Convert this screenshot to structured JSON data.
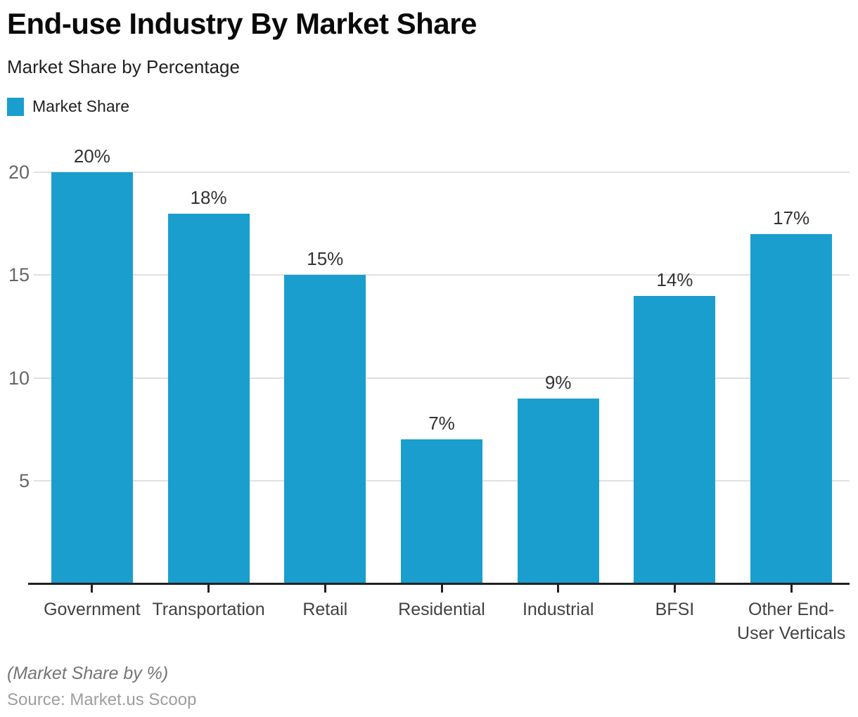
{
  "colors": {
    "title": "#0a0a0a",
    "subtitle": "#212121",
    "bar": "#1A9ECD",
    "grid": "#e0e0e0",
    "tick": "#666666",
    "value": "#333333",
    "axis": "#212121",
    "cat": "#424242",
    "footnote": "#757575",
    "source": "#9e9e9e"
  },
  "chart_data": {
    "type": "bar",
    "title": "End-use Industry By Market Share",
    "subtitle": "Market Share by Percentage",
    "legend": [
      "Market Share"
    ],
    "legend_position": "top-left",
    "categories": [
      "Government",
      "Transportation",
      "Retail",
      "Residential",
      "Industrial",
      "BFSI",
      "Other End-User Verticals"
    ],
    "values": [
      20,
      18,
      15,
      7,
      9,
      14,
      17
    ],
    "value_suffix": "%",
    "xlabel": "",
    "ylabel": "",
    "ylim": [
      0,
      20
    ],
    "yticks": [
      5,
      10,
      15,
      20
    ],
    "grid": true
  },
  "footer": {
    "note": "(Market Share by %)",
    "source": "Source: Market.us Scoop"
  }
}
